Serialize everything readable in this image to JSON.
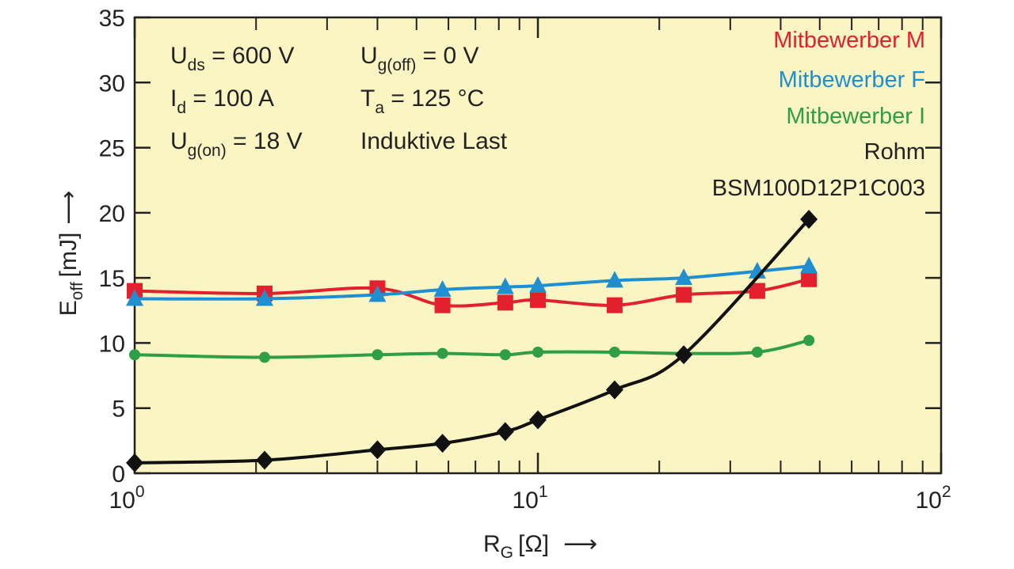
{
  "chart_data": {
    "type": "line",
    "x_scale": "log",
    "xlim": [
      1,
      100
    ],
    "ylim": [
      0,
      35
    ],
    "background": "#fbf5c3",
    "ylabel": {
      "main": "E",
      "sub": "off",
      "unit": "[mJ]",
      "arrow": "⟶"
    },
    "xlabel": {
      "main": "R",
      "sub": "G",
      "unit": "[Ω]",
      "arrow": "⟶"
    },
    "x_ticks": [
      {
        "value": 1,
        "base": "10",
        "exp": "0"
      },
      {
        "value": 10,
        "base": "10",
        "exp": "1"
      },
      {
        "value": 100,
        "base": "10",
        "exp": "2"
      }
    ],
    "y_ticks": [
      "0",
      "5",
      "10",
      "15",
      "20",
      "25",
      "30",
      "35"
    ],
    "conditions": [
      {
        "main": "U",
        "sub": "ds",
        "rest": " = 600 V"
      },
      {
        "main": "I",
        "sub": "d",
        "rest": " = 100 A"
      },
      {
        "main": "U",
        "sub": "g(on)",
        "rest": " = 18 V"
      },
      {
        "main": "U",
        "sub": "g(off)",
        "rest": " = 0 V"
      },
      {
        "main": "T",
        "sub": "a",
        "rest": " = 125 °C"
      },
      {
        "main": "Induktive Last",
        "sub": "",
        "rest": ""
      }
    ],
    "legend_position": "top-right",
    "legend_extra": "BSM100D12P1C003",
    "series": [
      {
        "name": "Mitbewerber M",
        "color": "#e3202e",
        "marker": "square",
        "x": [
          1.0,
          2.1,
          4.0,
          5.8,
          8.3,
          10.0,
          15.5,
          23,
          35,
          47
        ],
        "y": [
          14.0,
          13.8,
          14.2,
          12.9,
          13.1,
          13.3,
          12.9,
          13.7,
          14.0,
          14.9
        ]
      },
      {
        "name": "Mitbewerber F",
        "color": "#1f8fd0",
        "marker": "triangle",
        "x": [
          1.0,
          2.1,
          4.0,
          5.8,
          8.3,
          10.0,
          15.5,
          23,
          35,
          47
        ],
        "y": [
          13.4,
          13.4,
          13.7,
          14.1,
          14.3,
          14.4,
          14.8,
          15.0,
          15.5,
          15.9
        ]
      },
      {
        "name": "Mitbewerber I",
        "color": "#2f9e44",
        "marker": "circle",
        "x": [
          1.0,
          2.1,
          4.0,
          5.8,
          8.3,
          10.0,
          15.5,
          23,
          35,
          47
        ],
        "y": [
          9.1,
          8.9,
          9.1,
          9.2,
          9.1,
          9.3,
          9.3,
          9.2,
          9.3,
          10.2
        ]
      },
      {
        "name": "Rohm",
        "color": "#111111",
        "marker": "diamond",
        "x": [
          1.0,
          2.1,
          4.0,
          5.8,
          8.3,
          10.0,
          15.5,
          23,
          47
        ],
        "y": [
          0.8,
          1.0,
          1.8,
          2.3,
          3.2,
          4.1,
          6.4,
          9.1,
          19.5
        ]
      }
    ]
  }
}
